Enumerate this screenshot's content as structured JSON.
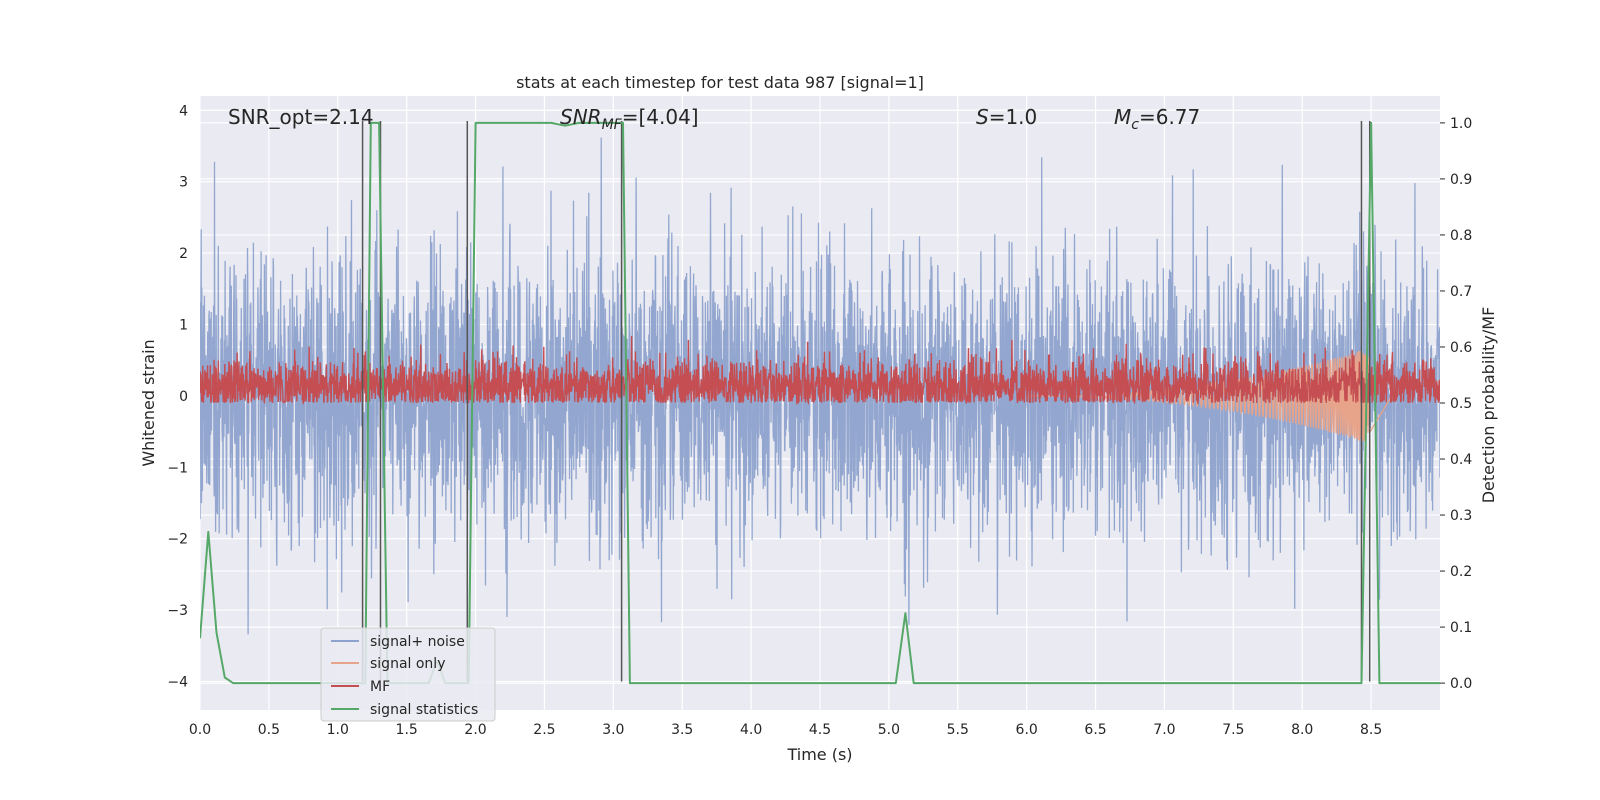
{
  "chart_data": {
    "type": "line",
    "title": "stats at each timestep for test data 987 [signal=1]",
    "xlabel": "Time (s)",
    "ylabel_left": "Whitened strain",
    "ylabel_right": "Detection probability/MF",
    "xlim": [
      0,
      9
    ],
    "ylim_left": [
      -4.4,
      4.2
    ],
    "ylim_right": [
      -0.048,
      1.048
    ],
    "xticks": [
      0.0,
      0.5,
      1.0,
      1.5,
      2.0,
      2.5,
      3.0,
      3.5,
      4.0,
      4.5,
      5.0,
      5.5,
      6.0,
      6.5,
      7.0,
      7.5,
      8.0,
      8.5
    ],
    "xtick_labels": [
      "0.0",
      "0.5",
      "1.0",
      "1.5",
      "2.0",
      "2.5",
      "3.0",
      "3.5",
      "4.0",
      "4.5",
      "5.0",
      "5.5",
      "6.0",
      "6.5",
      "7.0",
      "7.5",
      "8.0",
      "8.5"
    ],
    "yticks_left": [
      -4,
      -3,
      -2,
      -1,
      0,
      1,
      2,
      3,
      4
    ],
    "ytick_labels_left": [
      "−4",
      "−3",
      "−2",
      "−1",
      "0",
      "1",
      "2",
      "3",
      "4"
    ],
    "yticks_right": [
      0.0,
      0.1,
      0.2,
      0.3,
      0.4,
      0.5,
      0.6,
      0.7,
      0.8,
      0.9,
      1.0
    ],
    "ytick_labels_right": [
      "0.0",
      "0.1",
      "0.2",
      "0.3",
      "0.4",
      "0.5",
      "0.6",
      "0.7",
      "0.8",
      "0.9",
      "1.0"
    ],
    "grid": true,
    "legend_position": "lower-left",
    "annotations": {
      "snr_opt": "SNR_opt=2.14",
      "snr_mf_sym": "SNR",
      "snr_mf_sub": "MF",
      "snr_mf_val": "=[4.04]",
      "s_sym": "S",
      "s_val": "=1.0",
      "mc_sym": "M",
      "mc_sub": "c",
      "mc_val": "=6.77"
    },
    "series": [
      {
        "name": "signal+ noise",
        "color": "#8da2cc",
        "axis": "left",
        "kind": "noise",
        "x_range": [
          0,
          9
        ],
        "amplitude_std": 0.95,
        "amplitude_max": 3.9
      },
      {
        "name": "signal only",
        "color": "#e8a48a",
        "axis": "left",
        "kind": "chirp",
        "x_range": [
          6.0,
          8.65
        ],
        "peak_time": 8.45,
        "peak_amplitude": 0.65
      },
      {
        "name": "MF",
        "color": "#c44e52",
        "axis": "right",
        "kind": "mf",
        "x_range": [
          0,
          9
        ],
        "mean": 0.53,
        "max": 0.63,
        "min": 0.5
      },
      {
        "name": "signal statistics",
        "color": "#55a868",
        "axis": "right",
        "x": [
          0.0,
          0.06,
          0.12,
          0.18,
          0.24,
          0.3,
          0.8,
          1.18,
          1.2,
          1.24,
          1.3,
          1.36,
          1.42,
          1.5,
          1.66,
          1.72,
          1.78,
          1.92,
          1.95,
          2.0,
          2.55,
          2.65,
          2.75,
          3.07,
          3.12,
          5.05,
          5.12,
          5.18,
          8.43,
          8.5,
          8.56,
          8.62,
          9.0
        ],
        "y": [
          0.08,
          0.27,
          0.09,
          0.01,
          0.0,
          0.0,
          0.0,
          0.0,
          0.0,
          1.0,
          1.0,
          0.0,
          0.0,
          0.0,
          0.0,
          0.04,
          0.0,
          0.0,
          0.0,
          1.0,
          1.0,
          0.995,
          1.0,
          1.0,
          0.0,
          0.0,
          0.125,
          0.0,
          0.0,
          1.0,
          0.0,
          0.0,
          0.0
        ]
      }
    ],
    "vertical_markers": {
      "color": "#555555",
      "x": [
        1.18,
        1.31,
        1.94,
        3.06,
        8.43,
        8.49
      ],
      "y_top": 3.85,
      "y_bottom": -4.0
    }
  }
}
